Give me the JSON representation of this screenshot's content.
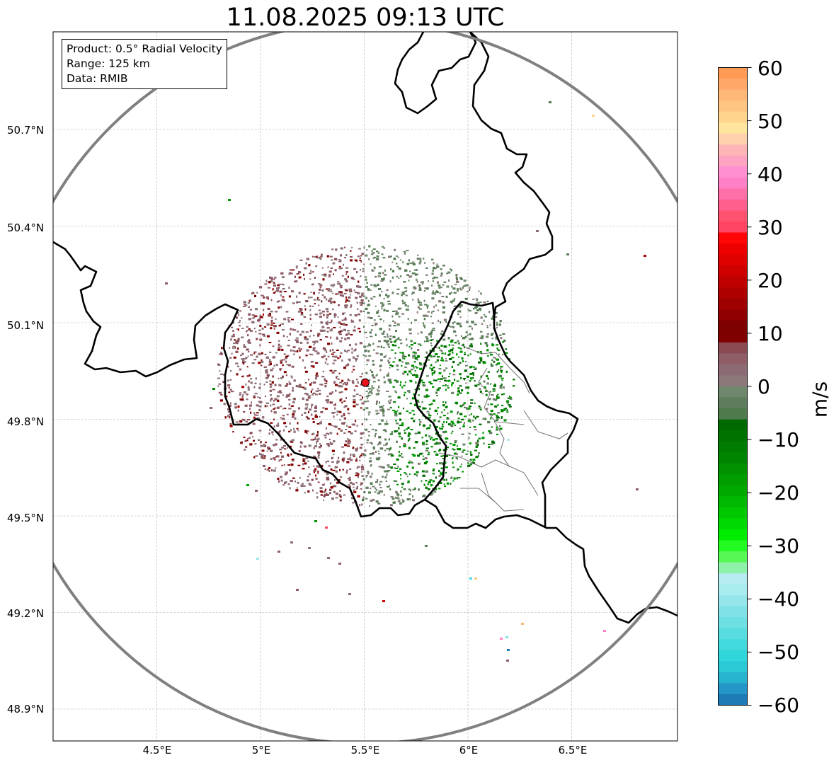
{
  "title": "11.08.2025 09:13 UTC",
  "info": {
    "product": "Product: 0.5° Radial Velocity",
    "range": "Range: 125 km",
    "data": "Data: RMIB"
  },
  "axes": {
    "lat_labels": [
      "50.7°N",
      "50.4°N",
      "50.1°N",
      "49.8°N",
      "49.5°N",
      "49.2°N",
      "48.9°N"
    ],
    "lon_labels": [
      "4.5°E",
      "5°E",
      "5.5°E",
      "6°E",
      "6.5°E"
    ],
    "lat_values": [
      50.7,
      50.4,
      50.1,
      49.8,
      49.5,
      49.2,
      48.9
    ],
    "lon_values": [
      4.5,
      5.0,
      5.5,
      6.0,
      6.5
    ],
    "lon_range": [
      4.0,
      7.0
    ],
    "lat_range": [
      48.8,
      51.0
    ],
    "grid": true
  },
  "radar": {
    "site_lon": 5.505,
    "site_lat": 49.914,
    "range_km": 125,
    "marker_color": "#e8141a",
    "ring_color": "#808080"
  },
  "colorbar": {
    "unit": "m/s",
    "tick_labels": [
      "60",
      "50",
      "40",
      "30",
      "20",
      "10",
      "0",
      "−10",
      "−20",
      "−30",
      "−40",
      "−50",
      "−60"
    ],
    "tick_values": [
      60,
      50,
      40,
      30,
      20,
      10,
      0,
      -10,
      -20,
      -30,
      -40,
      -50,
      -60
    ],
    "vmin": -60,
    "vmax": 60,
    "colors_top_to_bottom": [
      "#ff9a55",
      "#ffa868",
      "#ffb878",
      "#ffc482",
      "#ffd48c",
      "#ffe59d",
      "#ffd2ad",
      "#ffb5b5",
      "#ffa3c3",
      "#ff8fd0",
      "#ff80c5",
      "#ff6fa8",
      "#ff5f8d",
      "#ff5170",
      "#ff4562",
      "#ff0606",
      "#ef0000",
      "#df0000",
      "#cf0000",
      "#bf0000",
      "#af0000",
      "#9f0000",
      "#8f0000",
      "#7f0000",
      "#800000",
      "#8a4a52",
      "#8f5e67",
      "#8d6b75",
      "#8c7878",
      "#6f876c",
      "#5e7d5c",
      "#4e7a4c",
      "#006900",
      "#007200",
      "#007d00",
      "#008500",
      "#009100",
      "#009d00",
      "#00a900",
      "#00b800",
      "#00c800",
      "#00da00",
      "#00ec00",
      "#22fb22",
      "#55f855",
      "#8ef2a8",
      "#b5ecf2",
      "#a8ecef",
      "#95e6ea",
      "#80e2e6",
      "#6ce0e2",
      "#57dcdf",
      "#43d9dd",
      "#2fd7da",
      "#2bc9d5",
      "#27b4ce",
      "#2496c8",
      "#1f7ab8"
    ]
  }
}
